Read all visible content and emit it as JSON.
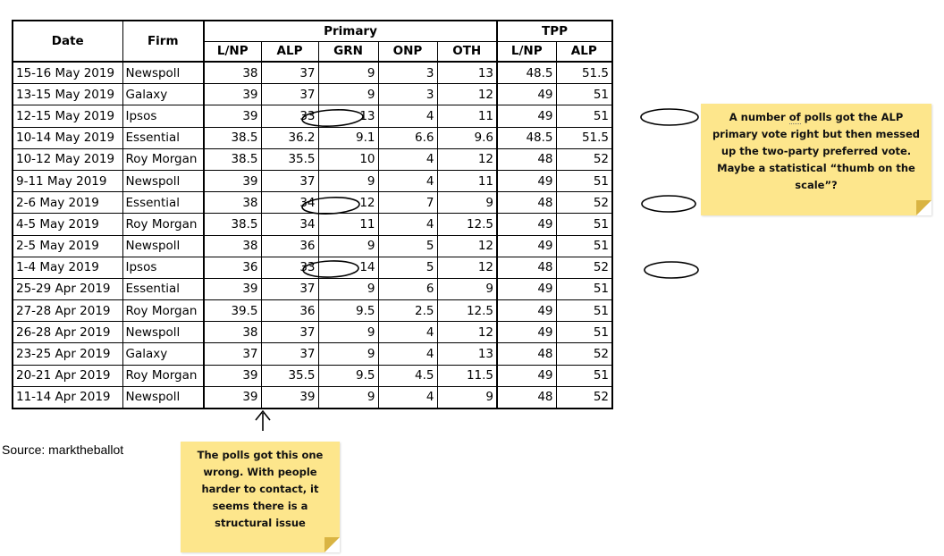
{
  "table": {
    "headers": {
      "date": "Date",
      "firm": "Firm",
      "primary": "Primary",
      "tpp": "TPP",
      "sub": [
        "L/NP",
        "ALP",
        "GRN",
        "ONP",
        "OTH",
        "L/NP",
        "ALP"
      ]
    },
    "rows": [
      [
        "15-16 May 2019",
        "Newspoll",
        "38",
        "37",
        "9",
        "3",
        "13",
        "48.5",
        "51.5"
      ],
      [
        "13-15 May 2019",
        "Galaxy",
        "39",
        "37",
        "9",
        "3",
        "12",
        "49",
        "51"
      ],
      [
        "12-15 May 2019",
        "Ipsos",
        "39",
        "33",
        "13",
        "4",
        "11",
        "49",
        "51"
      ],
      [
        "10-14 May 2019",
        "Essential",
        "38.5",
        "36.2",
        "9.1",
        "6.6",
        "9.6",
        "48.5",
        "51.5"
      ],
      [
        "10-12 May 2019",
        "Roy Morgan",
        "38.5",
        "35.5",
        "10",
        "4",
        "12",
        "48",
        "52"
      ],
      [
        "9-11 May 2019",
        "Newspoll",
        "39",
        "37",
        "9",
        "4",
        "11",
        "49",
        "51"
      ],
      [
        "2-6 May 2019",
        "Essential",
        "38",
        "34",
        "12",
        "7",
        "9",
        "48",
        "52"
      ],
      [
        "4-5 May 2019",
        "Roy Morgan",
        "38.5",
        "34",
        "11",
        "4",
        "12.5",
        "49",
        "51"
      ],
      [
        "2-5 May 2019",
        "Newspoll",
        "38",
        "36",
        "9",
        "5",
        "12",
        "49",
        "51"
      ],
      [
        "1-4 May 2019",
        "Ipsos",
        "36",
        "33",
        "14",
        "5",
        "12",
        "48",
        "52"
      ],
      [
        "25-29 Apr 2019",
        "Essential",
        "39",
        "37",
        "9",
        "6",
        "9",
        "49",
        "51"
      ],
      [
        "27-28 Apr 2019",
        "Roy Morgan",
        "39.5",
        "36",
        "9.5",
        "2.5",
        "12.5",
        "49",
        "51"
      ],
      [
        "26-28 Apr 2019",
        "Newspoll",
        "38",
        "37",
        "9",
        "4",
        "12",
        "49",
        "51"
      ],
      [
        "23-25 Apr 2019",
        "Galaxy",
        "37",
        "37",
        "9",
        "4",
        "13",
        "48",
        "52"
      ],
      [
        "20-21 Apr 2019",
        "Roy Morgan",
        "39",
        "35.5",
        "9.5",
        "4.5",
        "11.5",
        "49",
        "51"
      ],
      [
        "11-14 Apr 2019",
        "Newspoll",
        "39",
        "39",
        "9",
        "4",
        "9",
        "48",
        "52"
      ]
    ]
  },
  "notes": {
    "right_prefix": "A number ",
    "right_of": "of",
    "right_rest": " polls got the ALP primary vote right but then messed up the two-party preferred vote. Maybe a statistical “thumb on the scale”?",
    "bottom": "The polls got this one wrong. With people harder to contact, it seems there is a structural issue"
  },
  "source": "Source: marktheballot",
  "colors": {
    "note_fill": "#fde68c",
    "note_fold": "#d9b443"
  }
}
